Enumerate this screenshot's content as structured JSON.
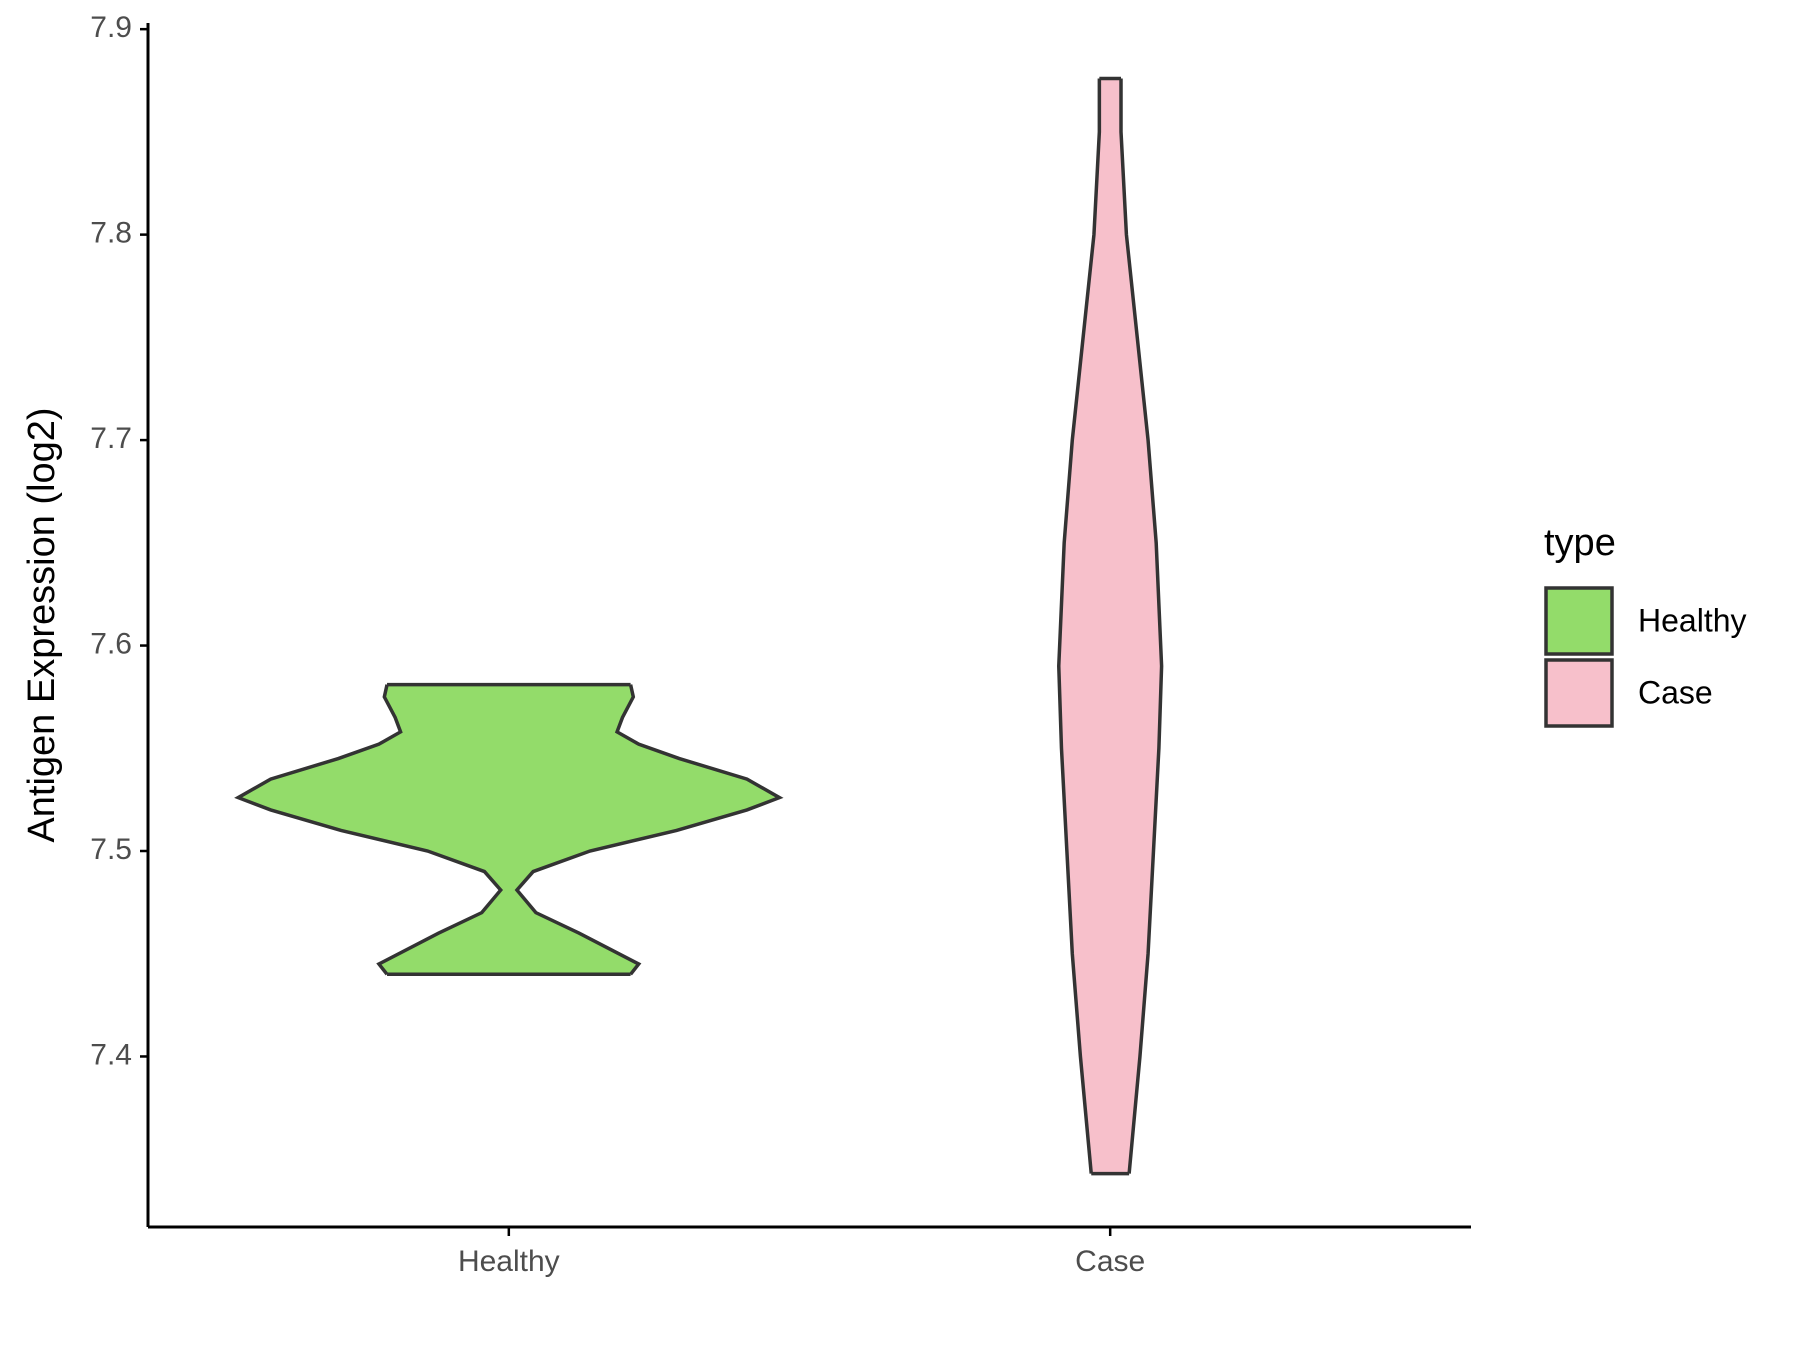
{
  "chart_data": {
    "type": "violin",
    "y_label": "Antigen Expression (log2)",
    "categories": [
      "Healthy",
      "Case"
    ],
    "legend_title": "type",
    "legend": "right",
    "ylim": [
      7.317,
      7.903
    ],
    "yticks": [
      7.4,
      7.5,
      7.6,
      7.7,
      7.8,
      7.9
    ],
    "series": [
      {
        "name": "Healthy",
        "color": "#93dc6a",
        "y": [
          7.44,
          7.445,
          7.46,
          7.47,
          7.481,
          7.49,
          7.5,
          7.51,
          7.52,
          7.526,
          7.535,
          7.545,
          7.552,
          7.558,
          7.565,
          7.575,
          7.581
        ],
        "width": [
          0.45,
          0.48,
          0.26,
          0.1,
          0.03,
          0.09,
          0.3,
          0.62,
          0.88,
          1.0,
          0.88,
          0.63,
          0.48,
          0.4,
          0.42,
          0.46,
          0.45
        ]
      },
      {
        "name": "Case",
        "color": "#f7c0cb",
        "y": [
          7.343,
          7.4,
          7.45,
          7.5,
          7.55,
          7.59,
          7.65,
          7.7,
          7.75,
          7.8,
          7.85,
          7.876
        ],
        "width": [
          0.07,
          0.11,
          0.14,
          0.16,
          0.18,
          0.19,
          0.17,
          0.14,
          0.1,
          0.06,
          0.04,
          0.04
        ]
      }
    ]
  }
}
